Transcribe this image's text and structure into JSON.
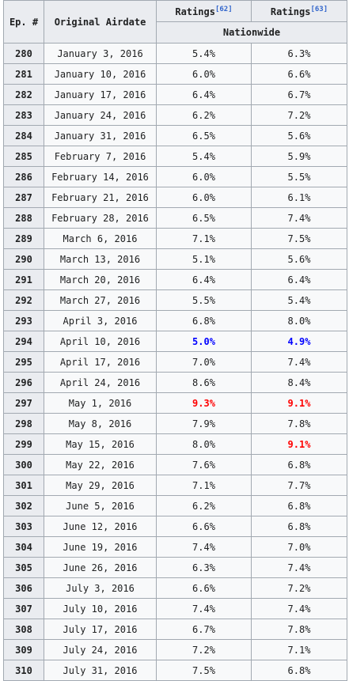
{
  "header": {
    "ep": "Ep. #",
    "airdate": "Original Airdate",
    "ratings": "Ratings",
    "ref1": "[62]",
    "ref2": "[63]",
    "nationwide": "Nationwide"
  },
  "rows": [
    {
      "ep": "280",
      "date": "January 3, 2016",
      "r1": "5.4%",
      "r2": "6.3%",
      "r1s": "",
      "r2s": ""
    },
    {
      "ep": "281",
      "date": "January 10, 2016",
      "r1": "6.0%",
      "r2": "6.6%",
      "r1s": "",
      "r2s": ""
    },
    {
      "ep": "282",
      "date": "January 17, 2016",
      "r1": "6.4%",
      "r2": "6.7%",
      "r1s": "",
      "r2s": ""
    },
    {
      "ep": "283",
      "date": "January 24, 2016",
      "r1": "6.2%",
      "r2": "7.2%",
      "r1s": "",
      "r2s": ""
    },
    {
      "ep": "284",
      "date": "January 31, 2016",
      "r1": "6.5%",
      "r2": "5.6%",
      "r1s": "",
      "r2s": ""
    },
    {
      "ep": "285",
      "date": "February 7, 2016",
      "r1": "5.4%",
      "r2": "5.9%",
      "r1s": "",
      "r2s": ""
    },
    {
      "ep": "286",
      "date": "February 14, 2016",
      "r1": "6.0%",
      "r2": "5.5%",
      "r1s": "",
      "r2s": ""
    },
    {
      "ep": "287",
      "date": "February 21, 2016",
      "r1": "6.0%",
      "r2": "6.1%",
      "r1s": "",
      "r2s": ""
    },
    {
      "ep": "288",
      "date": "February 28, 2016",
      "r1": "6.5%",
      "r2": "7.4%",
      "r1s": "",
      "r2s": ""
    },
    {
      "ep": "289",
      "date": "March 6, 2016",
      "r1": "7.1%",
      "r2": "7.5%",
      "r1s": "",
      "r2s": ""
    },
    {
      "ep": "290",
      "date": "March 13, 2016",
      "r1": "5.1%",
      "r2": "5.6%",
      "r1s": "",
      "r2s": ""
    },
    {
      "ep": "291",
      "date": "March 20, 2016",
      "r1": "6.4%",
      "r2": "6.4%",
      "r1s": "",
      "r2s": ""
    },
    {
      "ep": "292",
      "date": "March 27, 2016",
      "r1": "5.5%",
      "r2": "5.4%",
      "r1s": "",
      "r2s": ""
    },
    {
      "ep": "293",
      "date": "April 3, 2016",
      "r1": "6.8%",
      "r2": "8.0%",
      "r1s": "",
      "r2s": ""
    },
    {
      "ep": "294",
      "date": "April 10, 2016",
      "r1": "5.0%",
      "r2": "4.9%",
      "r1s": "lo",
      "r2s": "lo"
    },
    {
      "ep": "295",
      "date": "April 17, 2016",
      "r1": "7.0%",
      "r2": "7.4%",
      "r1s": "",
      "r2s": ""
    },
    {
      "ep": "296",
      "date": "April 24, 2016",
      "r1": "8.6%",
      "r2": "8.4%",
      "r1s": "",
      "r2s": ""
    },
    {
      "ep": "297",
      "date": "May 1, 2016",
      "r1": "9.3%",
      "r2": "9.1%",
      "r1s": "hi",
      "r2s": "hi"
    },
    {
      "ep": "298",
      "date": "May 8, 2016",
      "r1": "7.9%",
      "r2": "7.8%",
      "r1s": "",
      "r2s": ""
    },
    {
      "ep": "299",
      "date": "May 15, 2016",
      "r1": "8.0%",
      "r2": "9.1%",
      "r1s": "",
      "r2s": "hi"
    },
    {
      "ep": "300",
      "date": "May 22, 2016",
      "r1": "7.6%",
      "r2": "6.8%",
      "r1s": "",
      "r2s": ""
    },
    {
      "ep": "301",
      "date": "May 29, 2016",
      "r1": "7.1%",
      "r2": "7.7%",
      "r1s": "",
      "r2s": ""
    },
    {
      "ep": "302",
      "date": "June 5, 2016",
      "r1": "6.2%",
      "r2": "6.8%",
      "r1s": "",
      "r2s": ""
    },
    {
      "ep": "303",
      "date": "June 12, 2016",
      "r1": "6.6%",
      "r2": "6.8%",
      "r1s": "",
      "r2s": ""
    },
    {
      "ep": "304",
      "date": "June 19, 2016",
      "r1": "7.4%",
      "r2": "7.0%",
      "r1s": "",
      "r2s": ""
    },
    {
      "ep": "305",
      "date": "June 26, 2016",
      "r1": "6.3%",
      "r2": "7.4%",
      "r1s": "",
      "r2s": ""
    },
    {
      "ep": "306",
      "date": "July 3, 2016",
      "r1": "6.6%",
      "r2": "7.2%",
      "r1s": "",
      "r2s": ""
    },
    {
      "ep": "307",
      "date": "July 10, 2016",
      "r1": "7.4%",
      "r2": "7.4%",
      "r1s": "",
      "r2s": ""
    },
    {
      "ep": "308",
      "date": "July 17, 2016",
      "r1": "6.7%",
      "r2": "7.8%",
      "r1s": "",
      "r2s": ""
    },
    {
      "ep": "309",
      "date": "July 24, 2016",
      "r1": "7.2%",
      "r2": "7.1%",
      "r1s": "",
      "r2s": ""
    },
    {
      "ep": "310",
      "date": "July 31, 2016",
      "r1": "7.5%",
      "r2": "6.8%",
      "r1s": "",
      "r2s": ""
    }
  ]
}
